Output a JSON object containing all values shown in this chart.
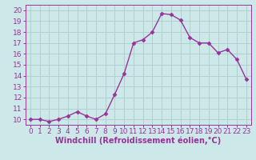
{
  "x": [
    0,
    1,
    2,
    3,
    4,
    5,
    6,
    7,
    8,
    9,
    10,
    11,
    12,
    13,
    14,
    15,
    16,
    17,
    18,
    19,
    20,
    21,
    22,
    23
  ],
  "y": [
    10,
    10,
    9.8,
    10,
    10.3,
    10.7,
    10.3,
    10,
    10.5,
    12.3,
    14.2,
    17.0,
    17.3,
    18.0,
    19.7,
    19.6,
    19.1,
    17.5,
    17.0,
    17.0,
    16.1,
    16.4,
    15.5,
    13.7
  ],
  "line_color": "#993399",
  "marker": "D",
  "marker_size": 2.5,
  "linewidth": 1.0,
  "xlabel": "Windchill (Refroidissement éolien,°C)",
  "xlim": [
    -0.5,
    23.5
  ],
  "ylim": [
    9.5,
    20.5
  ],
  "yticks": [
    10,
    11,
    12,
    13,
    14,
    15,
    16,
    17,
    18,
    19,
    20
  ],
  "xticks": [
    0,
    1,
    2,
    3,
    4,
    5,
    6,
    7,
    8,
    9,
    10,
    11,
    12,
    13,
    14,
    15,
    16,
    17,
    18,
    19,
    20,
    21,
    22,
    23
  ],
  "bg_color": "#cce8e8",
  "grid_color": "#b0d0d0",
  "xlabel_fontsize": 7,
  "tick_fontsize": 6.5,
  "line_color2": "#993399"
}
